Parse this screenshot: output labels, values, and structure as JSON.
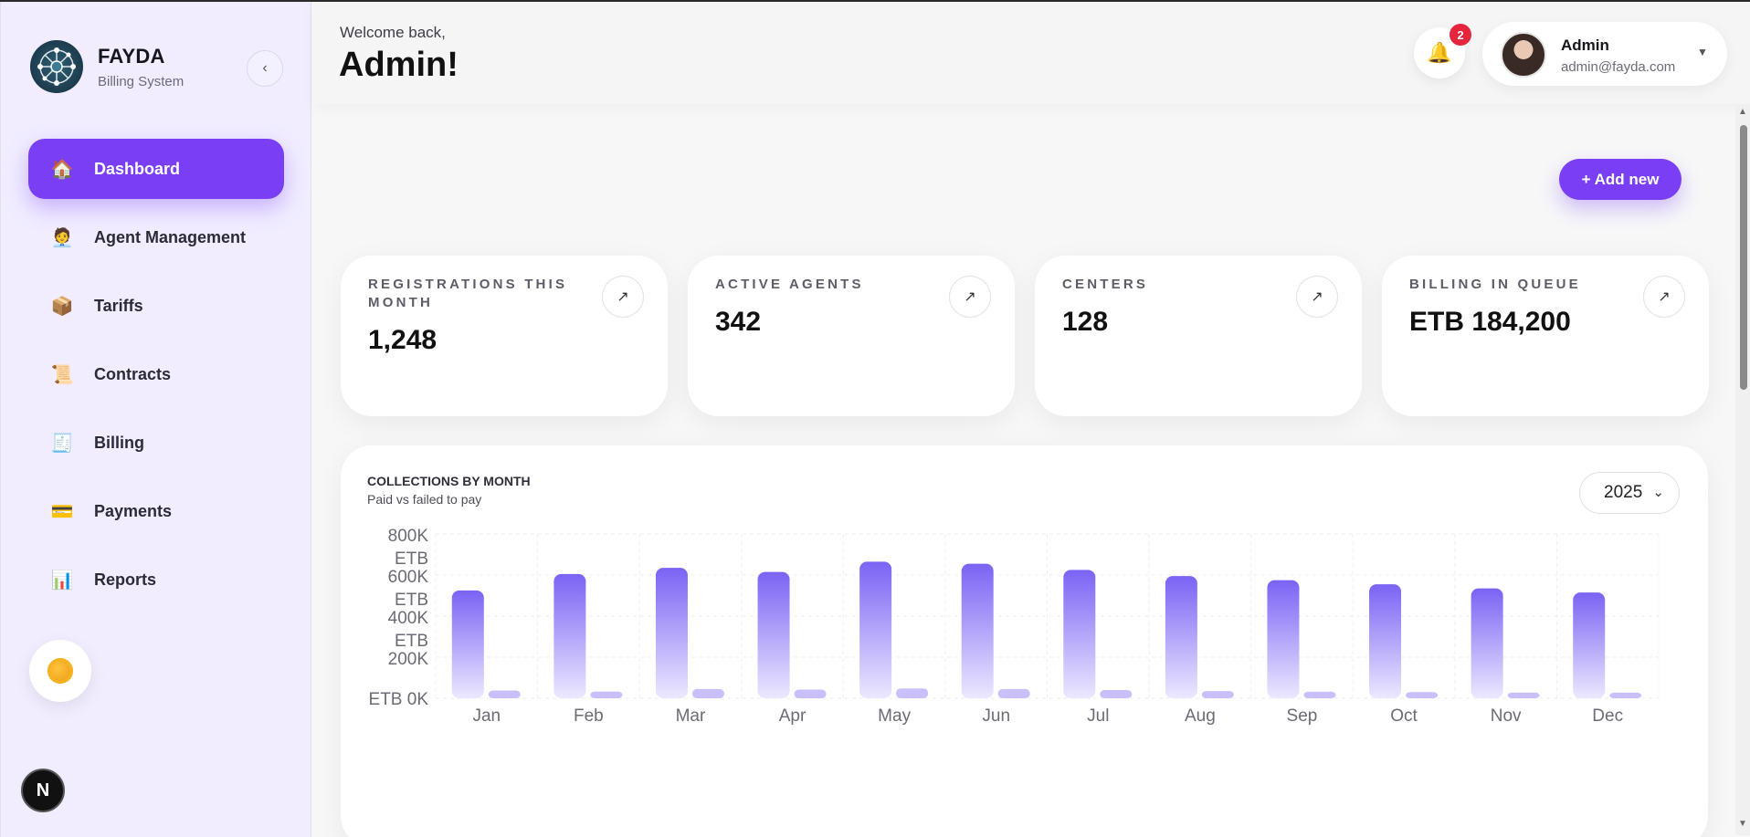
{
  "brand": {
    "name": "FAYDA",
    "subtitle": "Billing System"
  },
  "sidebar": {
    "collapse_glyph": "‹",
    "items": [
      {
        "label": "Dashboard",
        "icon": "🏠",
        "active": true
      },
      {
        "label": "Agent Management",
        "icon": "🧑‍💼"
      },
      {
        "label": "Tariffs",
        "icon": "📦"
      },
      {
        "label": "Contracts",
        "icon": "📜"
      },
      {
        "label": "Billing",
        "icon": "🧾"
      },
      {
        "label": "Payments",
        "icon": "💳"
      },
      {
        "label": "Reports",
        "icon": "📊"
      }
    ],
    "bottom_badge": "N"
  },
  "header": {
    "welcome": "Welcome back,",
    "title": "Admin!",
    "notifications": {
      "count": "2",
      "icon": "🔔"
    },
    "user": {
      "name": "Admin",
      "email": "admin@fayda.com",
      "chevron": "▼"
    }
  },
  "actions": {
    "add_new": "+ Add new"
  },
  "stats": [
    {
      "label": "REGISTRATIONS THIS MONTH",
      "value": "1,248",
      "arrow": "↗"
    },
    {
      "label": "ACTIVE AGENTS",
      "value": "342",
      "arrow": "↗"
    },
    {
      "label": "CENTERS",
      "value": "128",
      "arrow": "↗"
    },
    {
      "label": "BILLING IN QUEUE",
      "value": "ETB 184,200",
      "arrow": "↗"
    }
  ],
  "chart": {
    "title": "COLLECTIONS BY MONTH",
    "subtitle": "Paid vs failed to pay",
    "year": "2025",
    "select_caret": "⌄"
  },
  "chart_data": {
    "type": "bar",
    "categories": [
      "Jan",
      "Feb",
      "Mar",
      "Apr",
      "May",
      "Jun",
      "Jul",
      "Aug",
      "Sep",
      "Oct",
      "Nov",
      "Dec"
    ],
    "series": [
      {
        "values": [
          525000,
          605000,
          635000,
          615000,
          665000,
          655000,
          625000,
          595000,
          575000,
          555000,
          535000,
          515000
        ]
      },
      {
        "values": [
          38000,
          33000,
          45000,
          42000,
          48000,
          45000,
          40000,
          35000,
          32000,
          30000,
          28000,
          27000
        ]
      }
    ],
    "ytick_lines": [
      [
        "ETB",
        "0K"
      ],
      [
        "ETB",
        "200K"
      ],
      [
        "ETB",
        "400K"
      ],
      [
        "ETB",
        "600K"
      ],
      [
        "ETB",
        "800K"
      ]
    ],
    "ylim": [
      0,
      800000
    ],
    "grid": true,
    "colors": {
      "paid_top": "#7a63f4",
      "paid_bottom": "#ece8ff",
      "failed": "#c9bffb"
    }
  }
}
